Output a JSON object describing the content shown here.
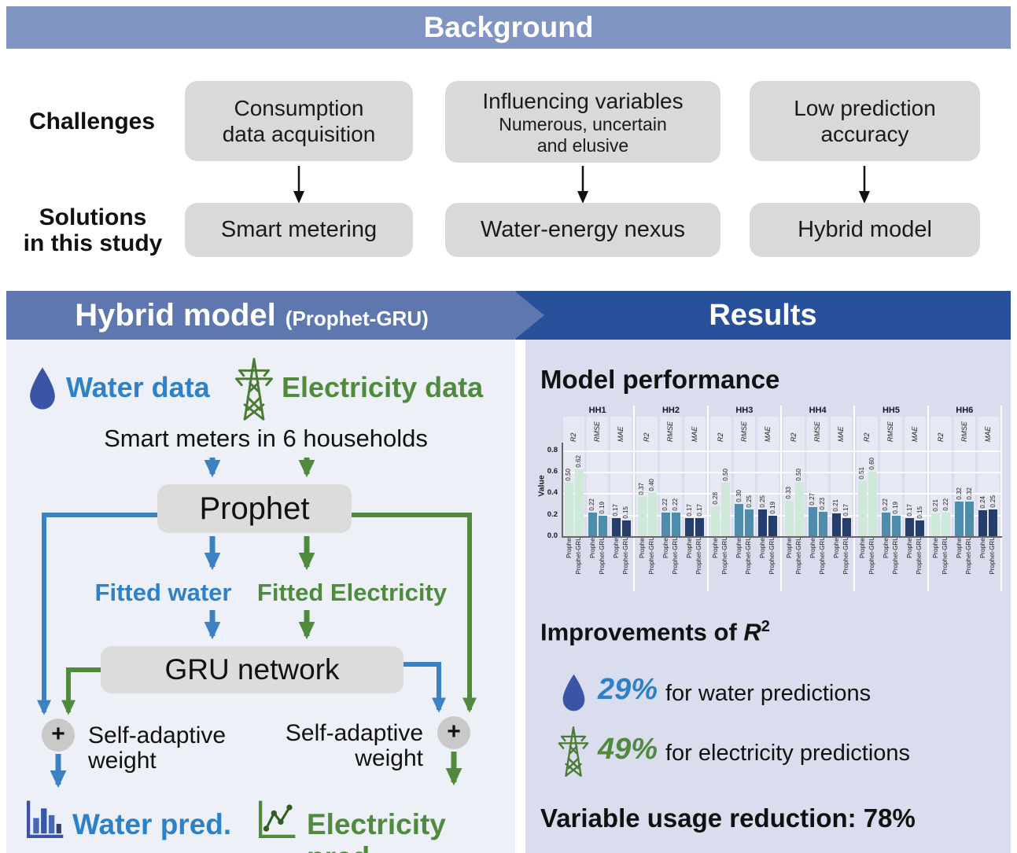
{
  "background": {
    "title": "Background",
    "challenges_label": "Challenges",
    "solutions_label": "Solutions\nin this study",
    "challenges": [
      {
        "title": "Consumption\ndata acquisition",
        "subtitle": ""
      },
      {
        "title": "Influencing variables",
        "subtitle": "Numerous, uncertain\nand elusive"
      },
      {
        "title": "Low prediction\naccuracy",
        "subtitle": ""
      }
    ],
    "solutions": [
      "Smart metering",
      "Water-energy nexus",
      "Hybrid model"
    ]
  },
  "hybrid_panel": {
    "title": "Hybrid model",
    "title_suffix": "(Prophet-GRU)",
    "water_data_label": "Water data",
    "electricity_data_label": "Electricity data",
    "smart_meters_label": "Smart meters in 6 households",
    "prophet_box": "Prophet",
    "fitted_water_label": "Fitted water",
    "fitted_electricity_label": "Fitted Electricity",
    "gru_box": "GRU network",
    "plus_symbol": "+",
    "self_adaptive_left": "Self-adaptive\nweight",
    "self_adaptive_right": "Self-adaptive\nweight",
    "water_pred_label": "Water pred.",
    "electricity_pred_label": "Electricity pred."
  },
  "results_panel": {
    "title": "Results",
    "model_performance_title": "Model performance",
    "improvements_prefix": "Improvements of ",
    "improvements_symbol": "R",
    "improvements_sup": "2",
    "water_improvement_pct": "29%",
    "water_improvement_text": "for water predictions",
    "electricity_improvement_pct": "49%",
    "electricity_improvement_text": "for electricity predictions",
    "variable_usage_text": "Variable usage reduction: 78%"
  },
  "icons": {
    "water": "water-drop-icon",
    "electricity": "transmission-tower-icon",
    "water_prediction": "bar-chart-icon",
    "electricity_prediction": "line-chart-icon",
    "combine": "plus-circle-icon",
    "flow": "down-arrow-icon"
  },
  "colors": {
    "water_blue": "#2e81c6",
    "electricity_green": "#4f8a3d",
    "drop_blue": "#3b54a5",
    "background_header": "#8095c2",
    "hybrid_header": "#5e77ae",
    "results_header": "#29509a",
    "bar_r2": "#cfe9d8",
    "bar_rmse": "#4e8cab",
    "bar_mae": "#263e6d"
  },
  "chart_data": {
    "type": "bar",
    "title": "Model performance",
    "ylabel": "Value",
    "yticks": [
      0.0,
      0.2,
      0.4,
      0.6,
      0.8
    ],
    "ylim": [
      0,
      0.88
    ],
    "grid": true,
    "groups": [
      "HH1",
      "HH2",
      "HH3",
      "HH4",
      "HH5",
      "HH6"
    ],
    "metrics": [
      "R2",
      "RMSE",
      "MAE"
    ],
    "models": [
      "Prophet",
      "Prophet-GRU"
    ],
    "colors": {
      "R2": "#cfe9d8",
      "RMSE": "#4e8cab",
      "MAE": "#263e6d"
    },
    "values": {
      "HH1": {
        "R2": [
          0.5,
          0.62
        ],
        "RMSE": [
          0.22,
          0.19
        ],
        "MAE": [
          0.17,
          0.15
        ]
      },
      "HH2": {
        "R2": [
          0.37,
          0.4
        ],
        "RMSE": [
          0.22,
          0.22
        ],
        "MAE": [
          0.17,
          0.17
        ]
      },
      "HH3": {
        "R2": [
          0.28,
          0.5
        ],
        "RMSE": [
          0.3,
          0.25
        ],
        "MAE": [
          0.25,
          0.19
        ]
      },
      "HH4": {
        "R2": [
          0.33,
          0.5
        ],
        "RMSE": [
          0.27,
          0.23
        ],
        "MAE": [
          0.21,
          0.17
        ]
      },
      "HH5": {
        "R2": [
          0.51,
          0.6
        ],
        "RMSE": [
          0.22,
          0.19
        ],
        "MAE": [
          0.17,
          0.15
        ]
      },
      "HH6": {
        "R2": [
          0.21,
          0.22
        ],
        "RMSE": [
          0.32,
          0.32
        ],
        "MAE": [
          0.24,
          0.25
        ]
      }
    }
  }
}
